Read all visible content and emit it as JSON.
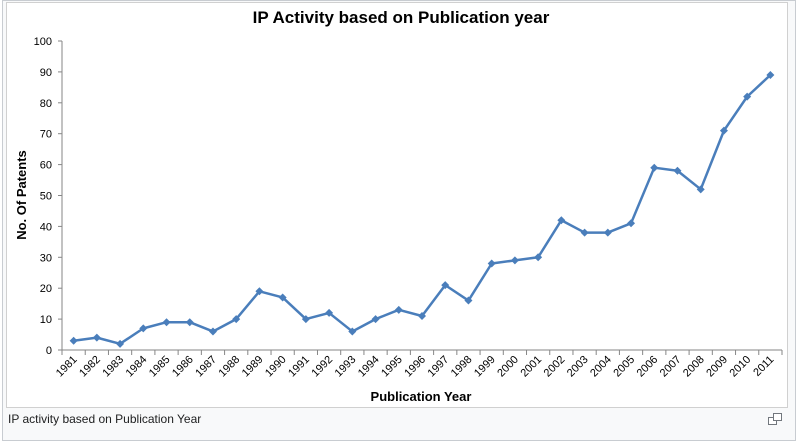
{
  "chart_data": {
    "type": "line",
    "title": "IP Activity based on Publication year",
    "xlabel": "Publication Year",
    "ylabel": "No. Of Patents",
    "ylim": [
      0,
      100
    ],
    "yticks": [
      "0",
      "10",
      "20",
      "30",
      "40",
      "50",
      "60",
      "70",
      "80",
      "90",
      "100"
    ],
    "grid": false,
    "categories": [
      "1981",
      "1982",
      "1983",
      "1984",
      "1985",
      "1986",
      "1987",
      "1988",
      "1989",
      "1990",
      "1991",
      "1992",
      "1993",
      "1994",
      "1995",
      "1996",
      "1997",
      "1998",
      "1999",
      "2000",
      "2001",
      "2002",
      "2003",
      "2004",
      "2005",
      "2006",
      "2007",
      "2008",
      "2009",
      "2010",
      "2011"
    ],
    "series": [
      {
        "name": "No. Of Patents",
        "values": [
          3,
          4,
          2,
          7,
          9,
          9,
          6,
          10,
          19,
          17,
          10,
          12,
          6,
          10,
          13,
          11,
          21,
          16,
          28,
          29,
          30,
          42,
          38,
          38,
          41,
          59,
          58,
          52,
          71,
          82,
          89
        ]
      }
    ],
    "line_color": "#4a7ebb"
  },
  "caption": "IP activity based on Publication Year",
  "icons": {
    "enlarge": "enlarge-icon"
  }
}
